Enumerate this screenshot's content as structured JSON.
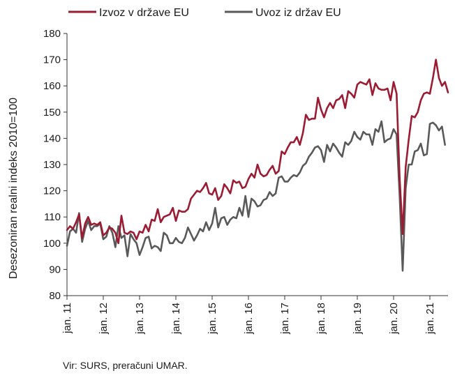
{
  "chart_data": {
    "type": "line",
    "xlabel": "",
    "ylabel": "Desezoniran realni indeks 2010=100",
    "ylim": [
      80,
      180
    ],
    "yticks": [
      80,
      90,
      100,
      110,
      120,
      130,
      140,
      150,
      160,
      170,
      180
    ],
    "x_tick_labels": [
      "jan. 11",
      "jan. 12",
      "jan. 13",
      "jan. 14",
      "jan. 15",
      "jan. 16",
      "jan. 17",
      "jan. 18",
      "jan. 19",
      "jan. 20",
      "jan. 21"
    ],
    "x_start": "2011-01",
    "x_end": "2021-07",
    "grid": false,
    "legend_position": "top",
    "source": "Vir: SURS, preračuni UMAR.",
    "series": [
      {
        "name": "Izvoz v države EU",
        "color": "#9b1b32",
        "values": [
          105.0,
          106.5,
          105.5,
          108.0,
          111.0,
          102.0,
          107.5,
          110.0,
          107.0,
          107.5,
          107.0,
          108.0,
          103.0,
          104.0,
          106.0,
          105.5,
          104.0,
          100.0,
          110.5,
          104.0,
          103.5,
          104.5,
          104.0,
          101.5,
          104.5,
          104.0,
          107.0,
          104.5,
          109.0,
          108.5,
          113.0,
          108.0,
          110.0,
          110.5,
          111.0,
          113.5,
          108.5,
          112.5,
          112.0,
          112.0,
          113.0,
          117.0,
          118.5,
          120.0,
          119.5,
          121.0,
          123.0,
          119.0,
          118.5,
          121.0,
          116.5,
          118.0,
          122.5,
          121.0,
          119.0,
          124.0,
          123.0,
          123.5,
          121.0,
          121.5,
          124.5,
          126.5,
          125.0,
          130.0,
          126.5,
          125.5,
          126.0,
          128.0,
          129.5,
          126.5,
          127.5,
          135.0,
          134.0,
          136.5,
          138.5,
          138.5,
          140.5,
          137.5,
          142.0,
          149.0,
          147.0,
          147.5,
          147.5,
          155.5,
          151.0,
          148.0,
          151.5,
          153.5,
          151.5,
          154.5,
          155.0,
          156.5,
          151.5,
          158.0,
          157.0,
          155.5,
          160.5,
          161.5,
          161.0,
          160.5,
          162.5,
          156.5,
          161.0,
          159.0,
          158.5,
          158.5,
          159.0,
          154.5,
          161.5,
          157.0,
          125.0,
          103.5,
          129.0,
          139.5,
          148.5,
          148.0,
          150.0,
          154.5,
          157.0,
          157.5,
          157.0,
          163.0,
          170.0,
          163.0,
          160.0,
          161.5,
          157.5
        ]
      },
      {
        "name": "Uvoz iz držav EU",
        "color": "#595959",
        "values": [
          99.0,
          104.5,
          105.5,
          104.0,
          111.5,
          100.5,
          105.5,
          108.5,
          105.0,
          106.5,
          106.5,
          107.5,
          101.5,
          102.5,
          106.5,
          104.0,
          98.5,
          106.5,
          102.0,
          103.0,
          95.0,
          103.5,
          101.5,
          100.0,
          95.5,
          98.5,
          102.0,
          102.5,
          98.0,
          99.0,
          98.5,
          97.0,
          104.0,
          103.0,
          100.0,
          100.0,
          102.0,
          100.5,
          100.0,
          102.0,
          106.0,
          103.5,
          101.0,
          103.0,
          105.5,
          104.5,
          108.0,
          105.0,
          107.5,
          113.5,
          106.0,
          109.5,
          110.0,
          107.0,
          109.0,
          110.0,
          109.5,
          113.5,
          110.5,
          118.0,
          110.0,
          117.0,
          116.0,
          114.0,
          114.5,
          116.5,
          117.0,
          119.5,
          118.0,
          119.0,
          125.0,
          125.5,
          123.5,
          123.5,
          125.0,
          126.0,
          125.5,
          127.0,
          129.5,
          130.5,
          133.0,
          134.5,
          136.5,
          137.0,
          135.5,
          131.0,
          137.5,
          135.0,
          138.0,
          136.5,
          134.5,
          133.0,
          138.5,
          137.5,
          139.0,
          142.5,
          140.5,
          139.5,
          142.5,
          141.5,
          141.5,
          137.5,
          143.5,
          142.5,
          146.5,
          138.5,
          139.5,
          140.0,
          143.5,
          141.5,
          118.0,
          89.5,
          121.0,
          130.0,
          130.0,
          135.0,
          135.5,
          138.0,
          133.5,
          134.0,
          145.5,
          146.0,
          145.0,
          143.0,
          144.5,
          137.5
        ]
      }
    ]
  }
}
